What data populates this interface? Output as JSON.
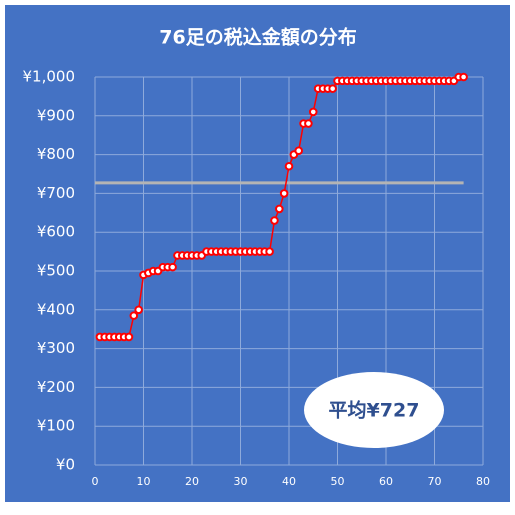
{
  "chart_data": {
    "type": "line",
    "title": "76足の税込金額の分布",
    "x": [
      1,
      2,
      3,
      4,
      5,
      6,
      7,
      8,
      9,
      10,
      11,
      12,
      13,
      14,
      15,
      16,
      17,
      18,
      19,
      20,
      21,
      22,
      23,
      24,
      25,
      26,
      27,
      28,
      29,
      30,
      31,
      32,
      33,
      34,
      35,
      36,
      37,
      38,
      39,
      40,
      41,
      42,
      43,
      44,
      45,
      46,
      47,
      48,
      49,
      50,
      51,
      52,
      53,
      54,
      55,
      56,
      57,
      58,
      59,
      60,
      61,
      62,
      63,
      64,
      65,
      66,
      67,
      68,
      69,
      70,
      71,
      72,
      73,
      74,
      75,
      76
    ],
    "values": [
      330,
      330,
      330,
      330,
      330,
      330,
      330,
      385,
      400,
      490,
      495,
      500,
      500,
      510,
      510,
      510,
      540,
      540,
      540,
      540,
      540,
      540,
      550,
      550,
      550,
      550,
      550,
      550,
      550,
      550,
      550,
      550,
      550,
      550,
      550,
      550,
      630,
      660,
      700,
      770,
      800,
      810,
      880,
      880,
      910,
      970,
      970,
      970,
      970,
      990,
      990,
      990,
      990,
      990,
      990,
      990,
      990,
      990,
      990,
      990,
      990,
      990,
      990,
      990,
      990,
      990,
      990,
      990,
      990,
      990,
      990,
      990,
      990,
      990,
      1000,
      1000
    ],
    "color": "#ff0000",
    "xlim": [
      0,
      80
    ],
    "xticks": [
      0,
      10,
      20,
      30,
      40,
      50,
      60,
      70,
      80
    ],
    "ylim": [
      0,
      1000
    ],
    "yticks": [
      {
        "value": 0,
        "label": "¥0"
      },
      {
        "value": 100,
        "label": "¥100"
      },
      {
        "value": 200,
        "label": "¥200"
      },
      {
        "value": 300,
        "label": "¥300"
      },
      {
        "value": 400,
        "label": "¥400"
      },
      {
        "value": 500,
        "label": "¥500"
      },
      {
        "value": 600,
        "label": "¥600"
      },
      {
        "value": 700,
        "label": "¥700"
      },
      {
        "value": 800,
        "label": "¥800"
      },
      {
        "value": 900,
        "label": "¥900"
      },
      {
        "value": 1000,
        "label": "¥1,000"
      }
    ],
    "grid": true,
    "reference_line": {
      "value": 727,
      "color": "#b4b4b4"
    },
    "annotation": "平均¥727"
  }
}
